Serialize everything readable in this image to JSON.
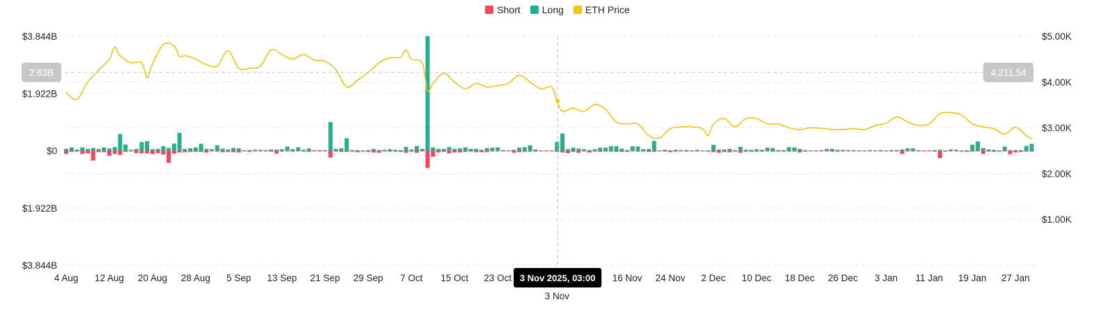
{
  "colors": {
    "short": "#f6465d",
    "long": "#2ebd85",
    "long_fill": "#26ae93",
    "price": "#f0c40f",
    "grid": "#e6e8ea",
    "crosshair": "#b7bdc6",
    "label_bg": "#c8c8c8",
    "xlabel_bg": "#000000"
  },
  "legend": [
    {
      "label": "Short",
      "key": "short"
    },
    {
      "label": "Long",
      "key": "long"
    },
    {
      "label": "ETH Price",
      "key": "price"
    }
  ],
  "crosshair": {
    "x_label": "3 Nov 2025, 03:00",
    "left_value": "2.63B",
    "right_value": "4,211.54",
    "day": 91.1,
    "left_num": 2.63,
    "right_num": 4211.54
  },
  "chart_data": {
    "type": "bar",
    "title": "",
    "start_date": "4 Aug",
    "x_tick_labels": [
      "4 Aug",
      "12 Aug",
      "20 Aug",
      "28 Aug",
      "5 Sep",
      "13 Sep",
      "21 Sep",
      "29 Sep",
      "7 Oct",
      "15 Oct",
      "23 Oct",
      "3 Nov",
      "16 Nov",
      "24 Nov",
      "2 Dec",
      "10 Dec",
      "18 Dec",
      "26 Dec",
      "3 Jan",
      "11 Jan",
      "19 Jan",
      "27 Jan"
    ],
    "x_tick_days": [
      0,
      8,
      16,
      24,
      32,
      40,
      48,
      56,
      64,
      72,
      80,
      91,
      104,
      112,
      120,
      128,
      136,
      144,
      152,
      160,
      168,
      176
    ],
    "left_axis": {
      "ticks": [
        "$3.844B",
        "$1.922B",
        "$0",
        "$1.922B",
        "$3.844B"
      ],
      "values": [
        3.844,
        1.922,
        0,
        -1.922,
        -3.844
      ],
      "range": [
        -3.844,
        3.844
      ],
      "unit": "B USD"
    },
    "right_axis": {
      "ticks": [
        "$5.00K",
        "$4.00K",
        "$3.00K",
        "$2.00K",
        "$1.00K"
      ],
      "values": [
        5000,
        4000,
        3000,
        2000,
        1000
      ],
      "range": [
        0,
        5000
      ]
    },
    "series": [
      {
        "name": "Long",
        "unit": "M USD",
        "values": [
          60,
          110,
          40,
          110,
          60,
          90,
          55,
          110,
          75,
          120,
          560,
          210,
          30,
          60,
          290,
          320,
          50,
          60,
          150,
          90,
          240,
          600,
          60,
          80,
          110,
          230,
          60,
          50,
          185,
          70,
          40,
          90,
          80,
          20,
          20,
          30,
          30,
          20,
          40,
          40,
          50,
          140,
          50,
          115,
          30,
          75,
          20,
          20,
          20,
          960,
          60,
          80,
          420,
          20,
          20,
          10,
          20,
          60,
          20,
          30,
          50,
          30,
          20,
          125,
          40,
          155,
          60,
          3844,
          110,
          60,
          60,
          120,
          60,
          80,
          110,
          60,
          60,
          30,
          90,
          100,
          110,
          20,
          10,
          30,
          100,
          120,
          180,
          40,
          10,
          10,
          10,
          300,
          580,
          50,
          100,
          70,
          50,
          20,
          50,
          100,
          100,
          150,
          150,
          70,
          20,
          150,
          140,
          50,
          60,
          330,
          10,
          30,
          10,
          30,
          20,
          20,
          10,
          30,
          10,
          10,
          200,
          40,
          40,
          60,
          20,
          130,
          30,
          30,
          50,
          30,
          100,
          90,
          20,
          20,
          120,
          110,
          60,
          20,
          10,
          10,
          20,
          60,
          60,
          30,
          30,
          20,
          20,
          10,
          10,
          20,
          10,
          20,
          10,
          20,
          20,
          40,
          80,
          80,
          20,
          10,
          10,
          20,
          30,
          10,
          40,
          30,
          10,
          10,
          200,
          310,
          90,
          40,
          30,
          10,
          140,
          20,
          20,
          20,
          160,
          230
        ]
      },
      {
        "name": "Short",
        "unit": "M USD",
        "values": [
          110,
          40,
          30,
          110,
          90,
          330,
          50,
          50,
          170,
          110,
          140,
          40,
          20,
          80,
          90,
          90,
          110,
          80,
          130,
          410,
          100,
          60,
          50,
          40,
          40,
          40,
          60,
          20,
          30,
          50,
          40,
          50,
          60,
          20,
          40,
          20,
          20,
          20,
          30,
          100,
          30,
          20,
          30,
          20,
          30,
          40,
          20,
          20,
          10,
          230,
          30,
          40,
          40,
          30,
          50,
          30,
          40,
          60,
          70,
          20,
          30,
          30,
          40,
          70,
          30,
          70,
          20,
          580,
          200,
          60,
          40,
          90,
          60,
          60,
          40,
          30,
          50,
          50,
          50,
          20,
          20,
          10,
          20,
          70,
          50,
          40,
          30,
          30,
          20,
          20,
          20,
          40,
          60,
          80,
          40,
          70,
          20,
          60,
          30,
          40,
          30,
          30,
          40,
          40,
          40,
          20,
          30,
          30,
          40,
          40,
          20,
          30,
          50,
          30,
          20,
          30,
          20,
          20,
          20,
          30,
          50,
          70,
          40,
          50,
          30,
          70,
          30,
          30,
          30,
          30,
          20,
          30,
          30,
          30,
          30,
          30,
          60,
          30,
          20,
          20,
          20,
          20,
          30,
          30,
          20,
          20,
          20,
          20,
          20,
          20,
          20,
          20,
          20,
          20,
          20,
          110,
          10,
          10,
          20,
          10,
          20,
          30,
          250,
          30,
          20,
          20,
          30,
          40,
          30,
          20,
          110,
          30,
          40,
          30,
          20,
          120,
          60,
          40,
          30,
          30
        ]
      },
      {
        "name": "ETH Price",
        "unit": "USD",
        "points": [
          [
            0,
            3770
          ],
          [
            2,
            3620
          ],
          [
            4,
            4000
          ],
          [
            6,
            4255
          ],
          [
            8,
            4500
          ],
          [
            9,
            4760
          ],
          [
            10,
            4575
          ],
          [
            12,
            4420
          ],
          [
            14,
            4420
          ],
          [
            15,
            4090
          ],
          [
            16,
            4390
          ],
          [
            18,
            4820
          ],
          [
            20,
            4790
          ],
          [
            21,
            4560
          ],
          [
            22,
            4575
          ],
          [
            24,
            4500
          ],
          [
            26,
            4380
          ],
          [
            28,
            4350
          ],
          [
            30,
            4680
          ],
          [
            32,
            4300
          ],
          [
            34,
            4300
          ],
          [
            36,
            4350
          ],
          [
            38,
            4700
          ],
          [
            40,
            4600
          ],
          [
            42,
            4500
          ],
          [
            44,
            4600
          ],
          [
            46,
            4480
          ],
          [
            48,
            4450
          ],
          [
            50,
            4270
          ],
          [
            52,
            3890
          ],
          [
            54,
            4040
          ],
          [
            56,
            4210
          ],
          [
            58,
            4420
          ],
          [
            60,
            4530
          ],
          [
            62,
            4540
          ],
          [
            63,
            4700
          ],
          [
            64,
            4500
          ],
          [
            66,
            4420
          ],
          [
            67,
            3810
          ],
          [
            68,
            3970
          ],
          [
            70,
            4190
          ],
          [
            72,
            4000
          ],
          [
            74,
            3850
          ],
          [
            76,
            3970
          ],
          [
            78,
            3890
          ],
          [
            80,
            3920
          ],
          [
            82,
            3970
          ],
          [
            84,
            4150
          ],
          [
            86,
            4000
          ],
          [
            88,
            3850
          ],
          [
            90,
            3890
          ],
          [
            91,
            3590
          ],
          [
            92,
            3360
          ],
          [
            94,
            3430
          ],
          [
            96,
            3360
          ],
          [
            98,
            3510
          ],
          [
            100,
            3400
          ],
          [
            102,
            3130
          ],
          [
            104,
            3085
          ],
          [
            106,
            3085
          ],
          [
            108,
            2830
          ],
          [
            110,
            2780
          ],
          [
            112,
            2980
          ],
          [
            114,
            3020
          ],
          [
            116,
            3020
          ],
          [
            118,
            2980
          ],
          [
            119,
            2830
          ],
          [
            120,
            3085
          ],
          [
            122,
            3200
          ],
          [
            124,
            3020
          ],
          [
            126,
            3200
          ],
          [
            128,
            3200
          ],
          [
            130,
            3085
          ],
          [
            132,
            3085
          ],
          [
            134,
            3000
          ],
          [
            136,
            2960
          ],
          [
            138,
            3000
          ],
          [
            140,
            2990
          ],
          [
            142,
            2960
          ],
          [
            144,
            2960
          ],
          [
            146,
            2980
          ],
          [
            148,
            2960
          ],
          [
            150,
            3050
          ],
          [
            152,
            3100
          ],
          [
            154,
            3240
          ],
          [
            156,
            3130
          ],
          [
            158,
            3050
          ],
          [
            160,
            3085
          ],
          [
            162,
            3310
          ],
          [
            164,
            3330
          ],
          [
            166,
            3280
          ],
          [
            168,
            3085
          ],
          [
            170,
            3020
          ],
          [
            172,
            2980
          ],
          [
            174,
            2860
          ],
          [
            176,
            3010
          ],
          [
            178,
            2830
          ],
          [
            179,
            2750
          ]
        ]
      }
    ],
    "grid": true,
    "legend_position": "top-center"
  }
}
